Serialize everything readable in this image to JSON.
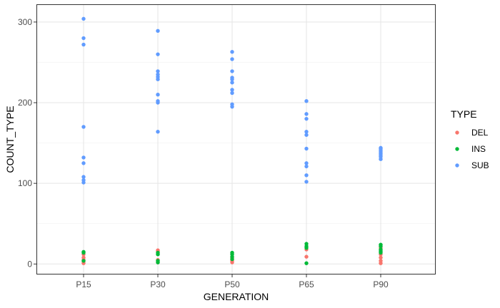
{
  "chart_data": {
    "type": "scatter",
    "title": "",
    "xlabel": "GENERATION",
    "ylabel": "COUNT_TYPE",
    "categories": [
      "P15",
      "P30",
      "P50",
      "P65",
      "P90"
    ],
    "ylim": [
      -13,
      322
    ],
    "yticks": [
      0,
      100,
      200,
      300
    ],
    "grid": true,
    "legend": {
      "title": "TYPE",
      "position": "right"
    },
    "series": [
      {
        "name": "DEL",
        "color": "#F8766D",
        "points": [
          [
            "P15",
            1
          ],
          [
            "P15",
            3
          ],
          [
            "P15",
            5
          ],
          [
            "P15",
            8
          ],
          [
            "P15",
            12
          ],
          [
            "P30",
            2
          ],
          [
            "P30",
            5
          ],
          [
            "P30",
            16
          ],
          [
            "P30",
            17
          ],
          [
            "P50",
            2
          ],
          [
            "P50",
            4
          ],
          [
            "P50",
            6
          ],
          [
            "P50",
            8
          ],
          [
            "P65",
            9
          ],
          [
            "P65",
            18
          ],
          [
            "P90",
            1
          ],
          [
            "P90",
            4
          ],
          [
            "P90",
            8
          ],
          [
            "P90",
            12
          ],
          [
            "P90",
            20
          ]
        ]
      },
      {
        "name": "INS",
        "color": "#00BA38",
        "points": [
          [
            "P15",
            4
          ],
          [
            "P15",
            14
          ],
          [
            "P15",
            15
          ],
          [
            "P30",
            2
          ],
          [
            "P30",
            4
          ],
          [
            "P30",
            12
          ],
          [
            "P30",
            14
          ],
          [
            "P50",
            6
          ],
          [
            "P50",
            9
          ],
          [
            "P50",
            12
          ],
          [
            "P50",
            14
          ],
          [
            "P65",
            1
          ],
          [
            "P65",
            20
          ],
          [
            "P65",
            22
          ],
          [
            "P65",
            25
          ],
          [
            "P90",
            14
          ],
          [
            "P90",
            16
          ],
          [
            "P90",
            18
          ],
          [
            "P90",
            22
          ],
          [
            "P90",
            24
          ]
        ]
      },
      {
        "name": "SUB",
        "color": "#619CFF",
        "points": [
          [
            "P15",
            101
          ],
          [
            "P15",
            104
          ],
          [
            "P15",
            108
          ],
          [
            "P15",
            125
          ],
          [
            "P15",
            132
          ],
          [
            "P15",
            170
          ],
          [
            "P15",
            272
          ],
          [
            "P15",
            280
          ],
          [
            "P15",
            304
          ],
          [
            "P30",
            164
          ],
          [
            "P30",
            200
          ],
          [
            "P30",
            202
          ],
          [
            "P30",
            210
          ],
          [
            "P30",
            229
          ],
          [
            "P30",
            232
          ],
          [
            "P30",
            235
          ],
          [
            "P30",
            239
          ],
          [
            "P30",
            260
          ],
          [
            "P30",
            289
          ],
          [
            "P50",
            195
          ],
          [
            "P50",
            198
          ],
          [
            "P50",
            212
          ],
          [
            "P50",
            216
          ],
          [
            "P50",
            225
          ],
          [
            "P50",
            229
          ],
          [
            "P50",
            231
          ],
          [
            "P50",
            239
          ],
          [
            "P50",
            254
          ],
          [
            "P50",
            263
          ],
          [
            "P65",
            102
          ],
          [
            "P65",
            110
          ],
          [
            "P65",
            121
          ],
          [
            "P65",
            125
          ],
          [
            "P65",
            143
          ],
          [
            "P65",
            160
          ],
          [
            "P65",
            164
          ],
          [
            "P65",
            180
          ],
          [
            "P65",
            186
          ],
          [
            "P65",
            202
          ],
          [
            "P90",
            130
          ],
          [
            "P90",
            133
          ],
          [
            "P90",
            135
          ],
          [
            "P90",
            137
          ],
          [
            "P90",
            139
          ],
          [
            "P90",
            141
          ],
          [
            "P90",
            143
          ],
          [
            "P90",
            144
          ]
        ]
      }
    ]
  }
}
